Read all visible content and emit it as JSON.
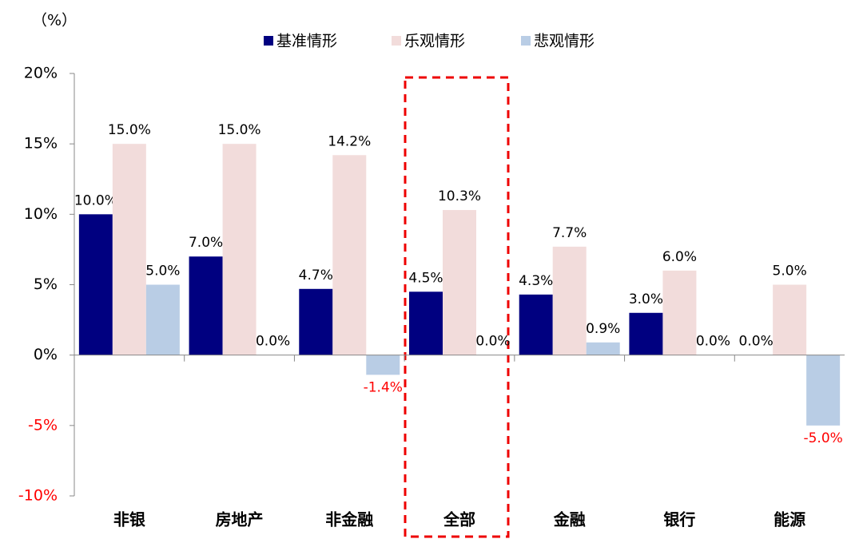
{
  "chart_data": {
    "type": "bar",
    "y_label": "（%）",
    "categories": [
      "非银",
      "房地产",
      "非金融",
      "全部",
      "金融",
      "银行",
      "能源"
    ],
    "series": [
      {
        "name": "基准情形",
        "color": "#000080",
        "values": [
          10.0,
          7.0,
          4.7,
          4.5,
          4.3,
          3.0,
          0.0
        ],
        "value_labels": [
          "10.0%",
          "7.0%",
          "4.7%",
          "4.5%",
          "4.3%",
          "3.0%",
          "0.0%"
        ]
      },
      {
        "name": "乐观情形",
        "color": "#f2dcdb",
        "values": [
          15.0,
          15.0,
          14.2,
          10.3,
          7.7,
          6.0,
          5.0
        ],
        "value_labels": [
          "15.0%",
          "15.0%",
          "14.2%",
          "10.3%",
          "7.7%",
          "6.0%",
          "5.0%"
        ]
      },
      {
        "name": "悲观情形",
        "color": "#b9cde5",
        "values": [
          5.0,
          0.0,
          -1.4,
          0.0,
          0.9,
          0.0,
          -5.0
        ],
        "value_labels": [
          "5.0%",
          "0.0%",
          "-1.4%",
          "0.0%",
          "0.9%",
          "0.0%",
          "-5.0%"
        ]
      }
    ],
    "ylim": [
      -10,
      20
    ],
    "yticks": [
      {
        "value": -10,
        "label": "-10%"
      },
      {
        "value": -5,
        "label": "-5%"
      },
      {
        "value": 0,
        "label": "0%"
      },
      {
        "value": 5,
        "label": "5%"
      },
      {
        "value": 10,
        "label": "10%"
      },
      {
        "value": 15,
        "label": "15%"
      },
      {
        "value": 20,
        "label": "20%"
      }
    ],
    "legend": "top"
  }
}
